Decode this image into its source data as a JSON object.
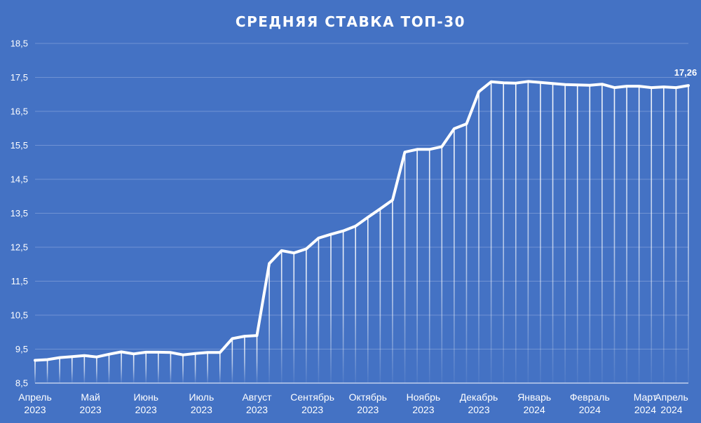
{
  "chart_data": {
    "type": "line",
    "title": "СРЕДНЯЯ СТАВКА ТОП-30",
    "xlabel": "",
    "ylabel": "",
    "ylim": [
      8.5,
      18.5
    ],
    "yticks": [
      8.5,
      9.5,
      10.5,
      11.5,
      12.5,
      13.5,
      14.5,
      15.5,
      16.5,
      17.5,
      18.5
    ],
    "ytick_labels": [
      "8,5",
      "9,5",
      "10,5",
      "11,5",
      "12,5",
      "13,5",
      "14,5",
      "15,5",
      "16,5",
      "17,5",
      "18,5"
    ],
    "grid": true,
    "drop_lines": true,
    "month_ticks": [
      {
        "index": 0,
        "line1": "Апрель",
        "line2": "2023"
      },
      {
        "index": 4.5,
        "line1": "Май",
        "line2": "2023"
      },
      {
        "index": 9,
        "line1": "Июнь",
        "line2": "2023"
      },
      {
        "index": 13.5,
        "line1": "Июль",
        "line2": "2023"
      },
      {
        "index": 18,
        "line1": "Август",
        "line2": "2023"
      },
      {
        "index": 22.5,
        "line1": "Сентябрь",
        "line2": "2023"
      },
      {
        "index": 27,
        "line1": "Октябрь",
        "line2": "2023"
      },
      {
        "index": 31.5,
        "line1": "Ноябрь",
        "line2": "2023"
      },
      {
        "index": 36,
        "line1": "Декабрь",
        "line2": "2023"
      },
      {
        "index": 40.5,
        "line1": "Январь",
        "line2": "2024"
      },
      {
        "index": 45,
        "line1": "Февраль",
        "line2": "2024"
      },
      {
        "index": 49.5,
        "line1": "Март",
        "line2": "2024"
      },
      {
        "index": 54,
        "line1": "Апрель",
        "line2": "2024"
      }
    ],
    "series": [
      {
        "values": [
          9.17,
          9.19,
          9.25,
          9.28,
          9.31,
          9.27,
          9.35,
          9.42,
          9.36,
          9.41,
          9.41,
          9.4,
          9.33,
          9.37,
          9.4,
          9.4,
          9.81,
          9.88,
          9.9,
          12.02,
          12.4,
          12.33,
          12.45,
          12.77,
          12.88,
          12.98,
          13.12,
          13.38,
          13.63,
          13.89,
          15.3,
          15.38,
          15.38,
          15.46,
          15.99,
          16.13,
          17.08,
          17.37,
          17.34,
          17.33,
          17.38,
          17.35,
          17.32,
          17.29,
          17.28,
          17.27,
          17.3,
          17.2,
          17.24,
          17.24,
          17.2,
          17.22,
          17.2,
          17.26
        ],
        "last_label": "17,26"
      }
    ]
  }
}
